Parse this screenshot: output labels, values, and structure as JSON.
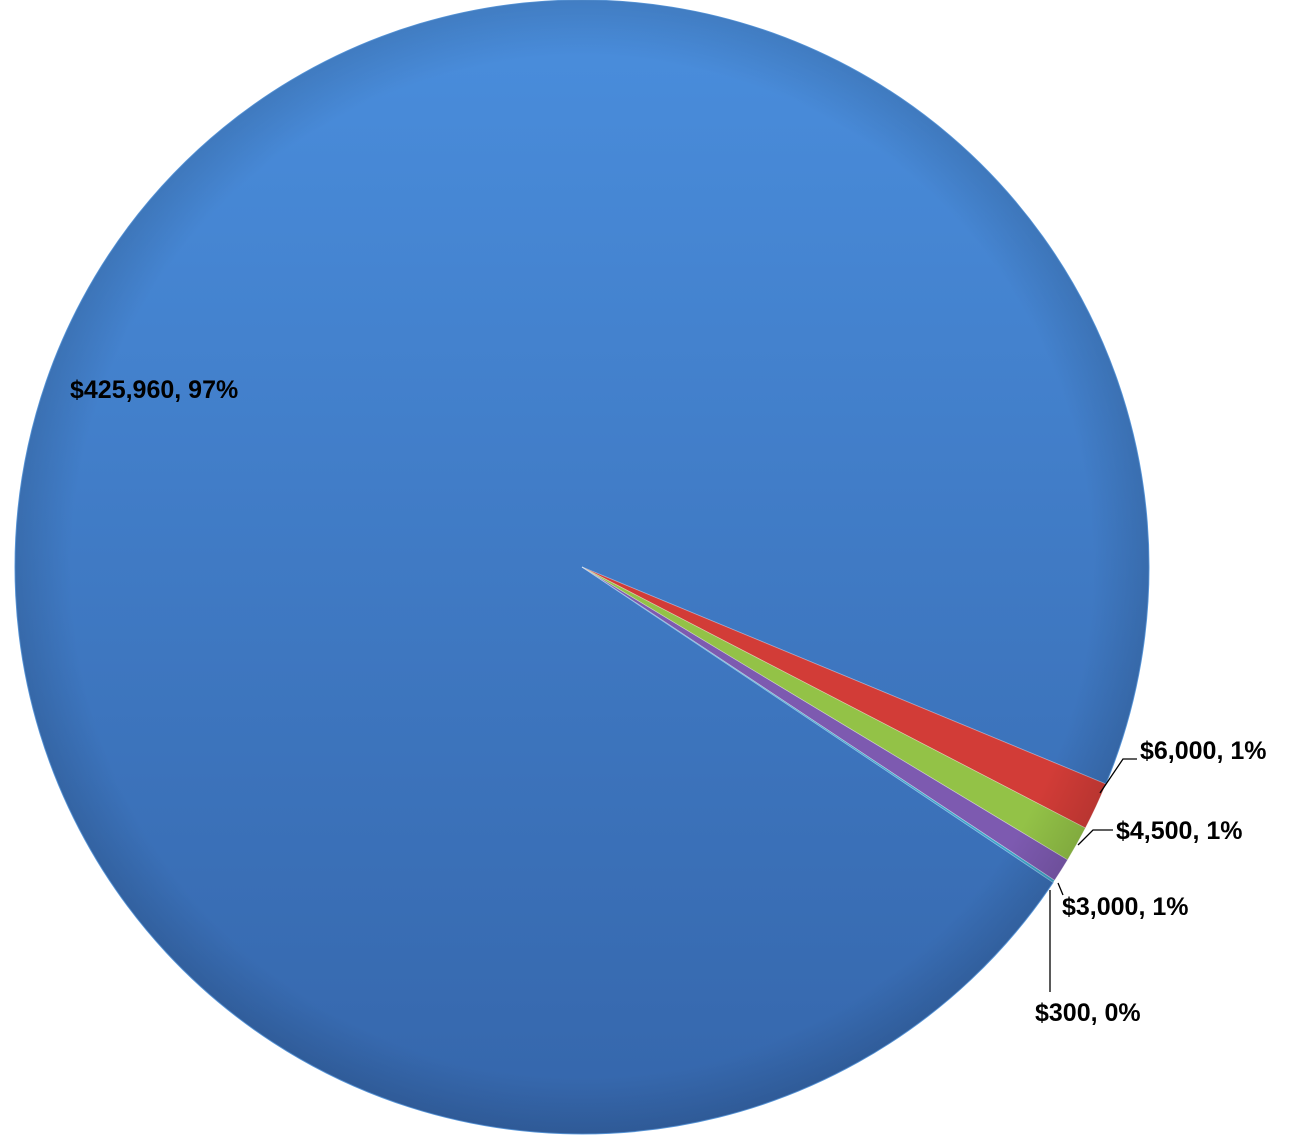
{
  "chart_data": {
    "type": "pie",
    "title": "",
    "slices": [
      {
        "value": 425960,
        "label": "$425,960, 97%",
        "color": "#3f7ecf"
      },
      {
        "value": 6000,
        "label": "$6,000, 1%",
        "color": "#d23c37"
      },
      {
        "value": 4500,
        "label": "$4,500, 1%",
        "color": "#93c247"
      },
      {
        "value": 3000,
        "label": "$3,000, 1%",
        "color": "#7d5ab0"
      },
      {
        "value": 300,
        "label": "$300, 0%",
        "color": "#3da5c8"
      }
    ],
    "legend": "none",
    "style": "3d-shaded"
  }
}
